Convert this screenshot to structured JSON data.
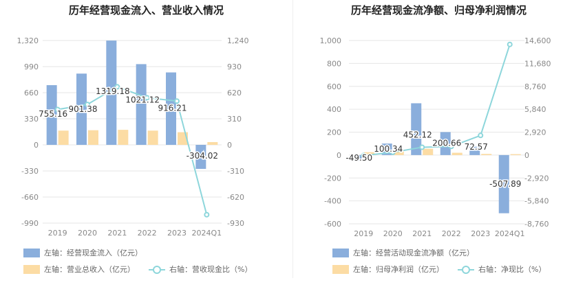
{
  "colors": {
    "bar_blue": "#8aaedc",
    "bar_orange": "#fcdca4",
    "line_cyan": "#8dd6db",
    "grid": "#e6e6e6",
    "axis_text": "#888888"
  },
  "chart_data": [
    {
      "type": "bar+line",
      "title": "历年经营现金流入、营业收入情况",
      "categories": [
        "2019",
        "2020",
        "2021",
        "2022",
        "2023",
        "2024Q1"
      ],
      "left_axis": {
        "ticks": [
          "1,320",
          "990",
          "660",
          "330",
          "0",
          "-330",
          "-660",
          "-990"
        ],
        "ylim": [
          -990,
          1320
        ]
      },
      "right_axis": {
        "ticks": [
          "1,240",
          "930",
          "620",
          "310",
          "0",
          "-310",
          "-620",
          "-930"
        ],
        "ylim": [
          -930,
          1240
        ]
      },
      "series": [
        {
          "name": "左轴：经营现金流入（亿元）",
          "type": "bar",
          "axis": "left",
          "color": "#8aaedc",
          "values": [
            755.16,
            901.38,
            1319.18,
            1021.12,
            916.21,
            -304.02
          ],
          "labels": [
            "755.16",
            "901.38",
            "1319.18",
            "1021.12",
            "916.21",
            "-304.02"
          ]
        },
        {
          "name": "左轴：营业总收入（亿元）",
          "type": "bar",
          "axis": "left",
          "color": "#fcdca4",
          "values": [
            180,
            185,
            190,
            180,
            160,
            35
          ]
        },
        {
          "name": "右轴：营收现金比（%）",
          "type": "line",
          "axis": "right",
          "color": "#8dd6db",
          "values": [
            420,
            480,
            690,
            560,
            520,
            -830
          ]
        }
      ]
    },
    {
      "type": "bar+line",
      "title": "历年经营现金流净额、归母净利润情况",
      "categories": [
        "2019",
        "2020",
        "2021",
        "2022",
        "2023",
        "2024Q1"
      ],
      "left_axis": {
        "ticks": [
          "1,000",
          "800",
          "600",
          "400",
          "200",
          "0",
          "-200",
          "-400",
          "-600"
        ],
        "ylim": [
          -600,
          1000
        ]
      },
      "right_axis": {
        "ticks": [
          "14,600",
          "11,680",
          "8,760",
          "5,840",
          "2,920",
          "0",
          "-2,920",
          "-5,840",
          "-8,760"
        ],
        "ylim": [
          -8760,
          14600
        ]
      },
      "series": [
        {
          "name": "左轴：经营活动现金流净额（亿元）",
          "type": "bar",
          "axis": "left",
          "color": "#8aaedc",
          "values": [
            -49.5,
            100.34,
            452.12,
            200.66,
            72.57,
            -507.89
          ],
          "labels": [
            "-49.50",
            "100.34",
            "452.12",
            "200.66",
            "72.57",
            "-507.89"
          ]
        },
        {
          "name": "左轴：归母净利润（亿元）",
          "type": "bar",
          "axis": "left",
          "color": "#fcdca4",
          "values": [
            25,
            30,
            55,
            20,
            10,
            8
          ]
        },
        {
          "name": "右轴：净现比（%）",
          "type": "line",
          "axis": "right",
          "color": "#8dd6db",
          "values": [
            -60,
            350,
            1000,
            1100,
            2500,
            14100
          ]
        }
      ]
    }
  ]
}
